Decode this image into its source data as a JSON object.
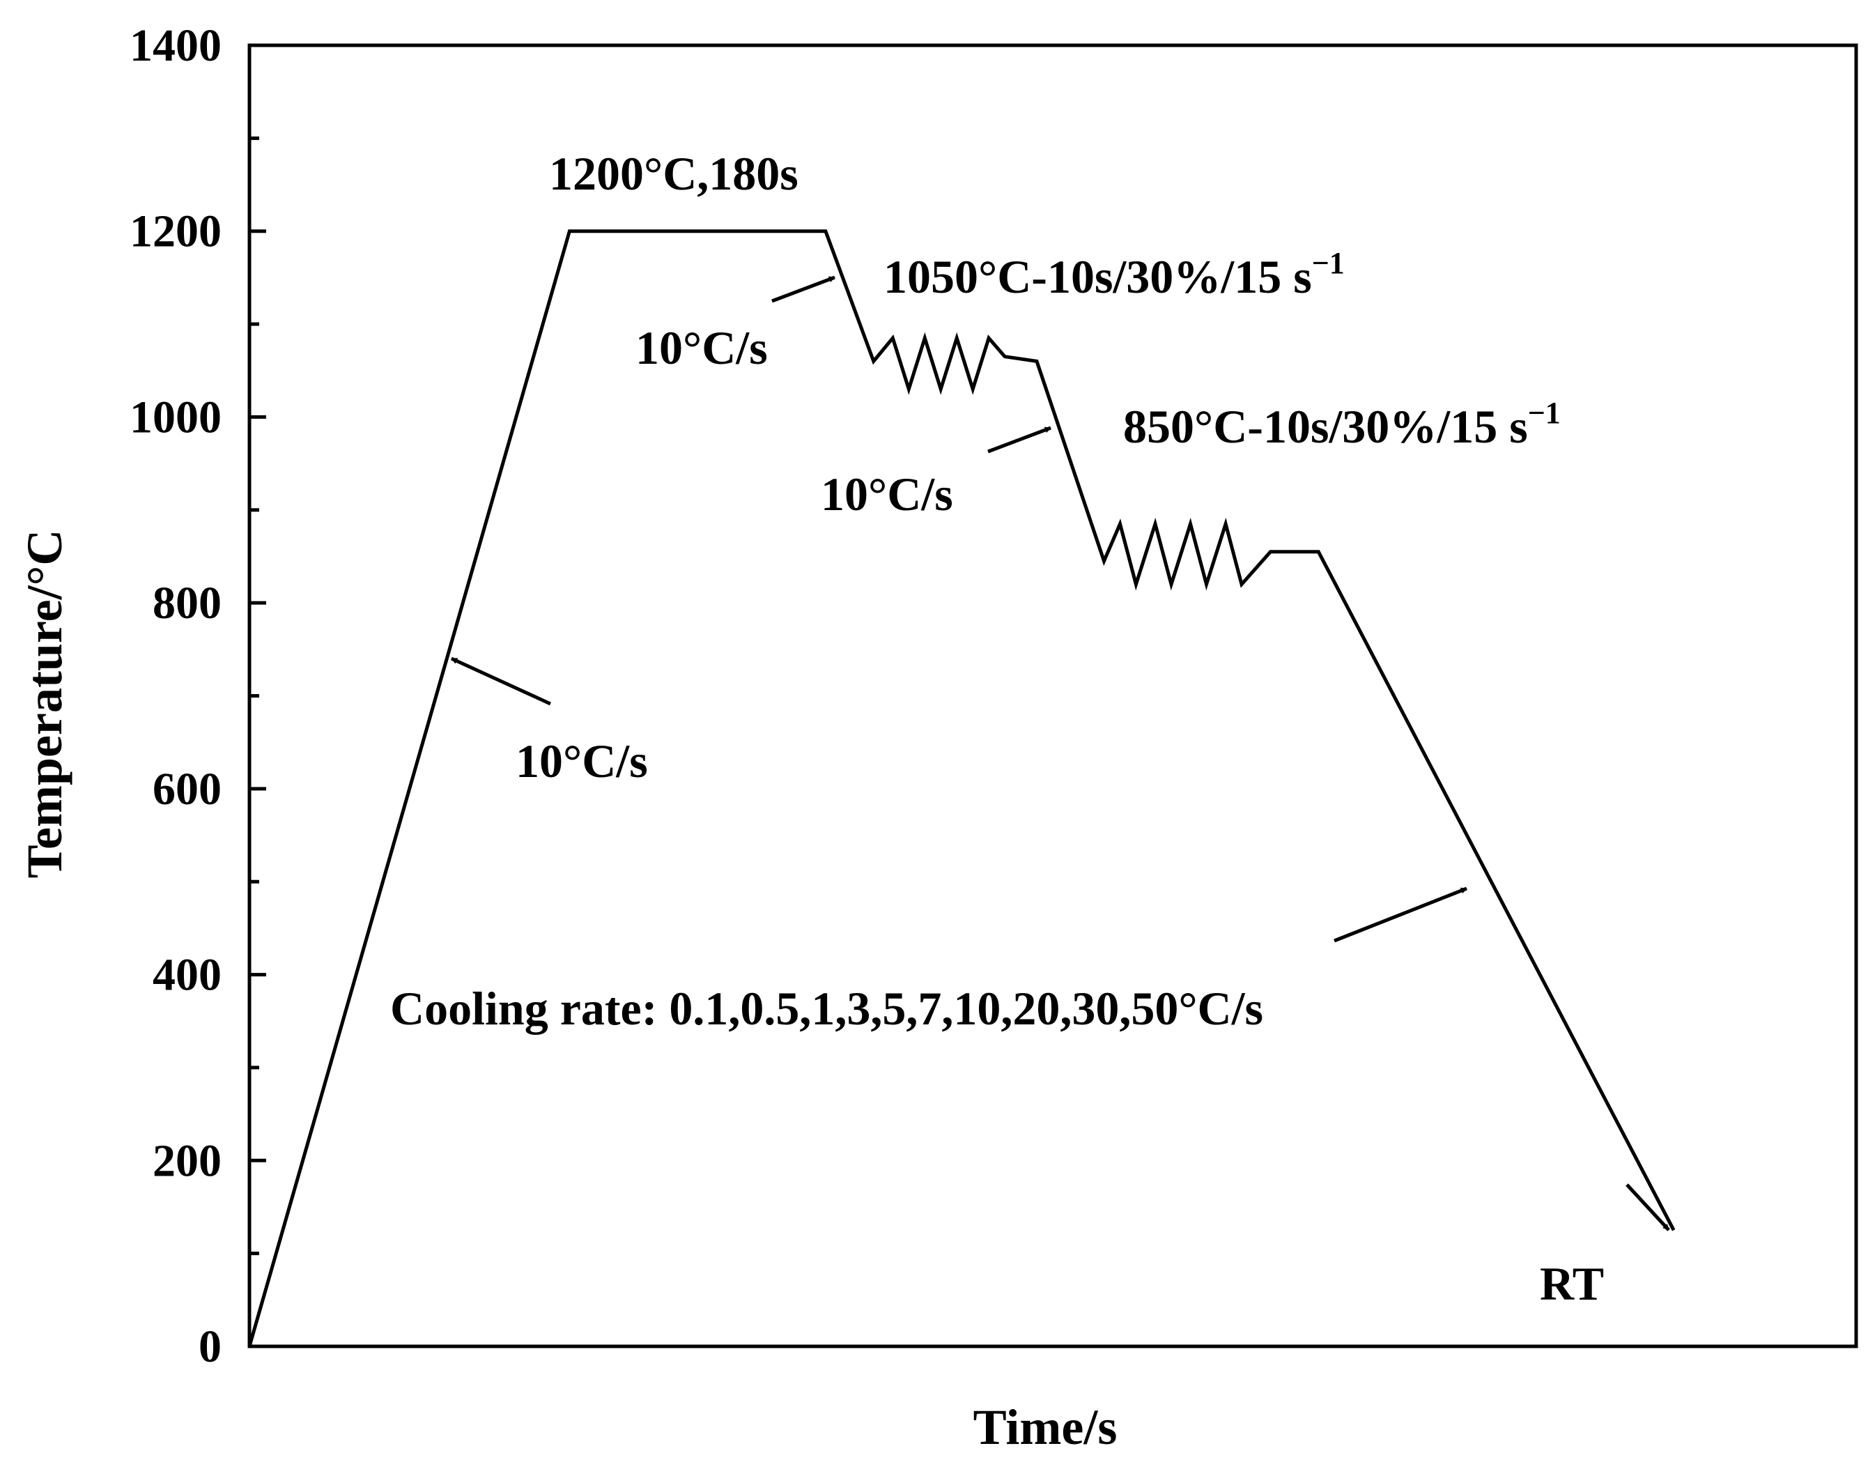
{
  "chart_data": {
    "type": "line",
    "title": "",
    "xlabel": "Time/s",
    "ylabel": "Temperature/°C",
    "ylim": [
      0,
      1400
    ],
    "y_ticks": [
      "0",
      "200",
      "400",
      "600",
      "800",
      "1000",
      "1200",
      "1400"
    ],
    "x_ticks": [],
    "grid": false,
    "legend": "none",
    "x_units_note_hidden": "x has no printed scale; values are arbitrary time units",
    "series": [
      {
        "points": [
          {
            "x": 0,
            "y": 0
          },
          {
            "x": 100,
            "y": 1200
          },
          {
            "x": 180,
            "y": 1200
          },
          {
            "x": 195,
            "y": 1060
          },
          {
            "x": 201,
            "y": 1085
          },
          {
            "x": 206,
            "y": 1030
          },
          {
            "x": 211,
            "y": 1085
          },
          {
            "x": 216,
            "y": 1030
          },
          {
            "x": 221,
            "y": 1085
          },
          {
            "x": 226,
            "y": 1030
          },
          {
            "x": 231,
            "y": 1085
          },
          {
            "x": 236,
            "y": 1065
          },
          {
            "x": 246,
            "y": 1060
          },
          {
            "x": 267,
            "y": 845
          },
          {
            "x": 272,
            "y": 885
          },
          {
            "x": 277,
            "y": 820
          },
          {
            "x": 283,
            "y": 885
          },
          {
            "x": 288,
            "y": 820
          },
          {
            "x": 294,
            "y": 885
          },
          {
            "x": 299,
            "y": 820
          },
          {
            "x": 305,
            "y": 885
          },
          {
            "x": 310,
            "y": 820
          },
          {
            "x": 319,
            "y": 855
          },
          {
            "x": 334,
            "y": 855
          },
          {
            "x": 445,
            "y": 125
          }
        ]
      }
    ],
    "annotations": [
      {
        "text": "1200°C,180s"
      },
      {
        "text": "1050°C-10s/30%/15 s",
        "sup": "−1"
      },
      {
        "text": "850°C-10s/30%/15 s",
        "sup": "−1"
      },
      {
        "text": "10°C/s"
      },
      {
        "text": "10°C/s"
      },
      {
        "text": "10°C/s"
      },
      {
        "text": "Cooling rate: 0.1,0.5,1,3,5,7,10,20,30,50°C/s"
      },
      {
        "text": "RT"
      }
    ]
  }
}
